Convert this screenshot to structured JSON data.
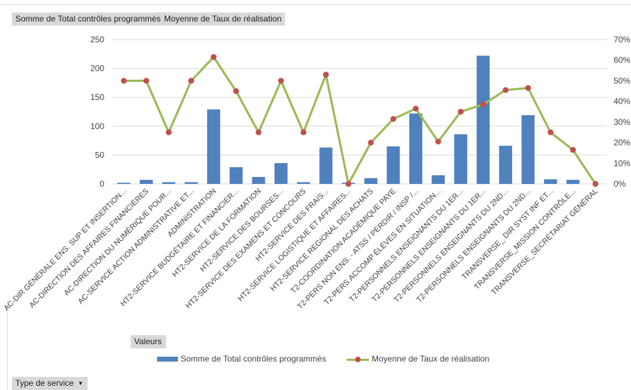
{
  "pivot_fields": {
    "values_sum": "Somme de Total contrôles programmés",
    "values_avg": "Moyenne de Taux de réalisation",
    "valeurs": "Valeurs",
    "row_field": "Type de service",
    "row_field_icon": "dropdown-arrow-icon"
  },
  "colors": {
    "bar": "#4f81bd",
    "line": "#9bbb59",
    "marker": "#c0504d",
    "grid": "#d9d9d9",
    "field_button": "#d9d9d9"
  },
  "chart_data": {
    "type": "bar",
    "combo": "bar+line",
    "title": "",
    "xlabel": "",
    "ylabel": "",
    "y2label": "",
    "grid": true,
    "legend_position": "bottom",
    "ylim": [
      0,
      250
    ],
    "y_ticks": [
      "0",
      "50",
      "100",
      "150",
      "200",
      "250"
    ],
    "y2lim": [
      0,
      0.7
    ],
    "y2_ticks": [
      "0%",
      "10%",
      "20%",
      "30%",
      "40%",
      "50%",
      "60%",
      "70%"
    ],
    "categories": [
      "AC-DIR GÉNÉRALE ENS. SUP ET INSERTION...",
      "AC-DIRECTION DES AFFAIRES FINANCIÈRES",
      "AC-DIRECTION DU NUMÉRIQUE POUR...",
      "AC-SERVICE ACTION ADMINISTRATIVE ET...",
      "ADMINISTRATION",
      "HT2-SERVICE BUDGÉTAIRE ET FINANCIER...",
      "HT2-SERVICE DE LA FORMATION",
      "HT2-SERVICE DES BOURSES...",
      "HT2-SERVICE DES EXAMENS ET CONCOURS",
      "HT2-SERVICE DES FRAIS...",
      "HT2-SERVICE LOGISTIQUE ET AFFAIRES...",
      "HT2-SERVICE REGIONAL DES ACHATS",
      "T2-COORDINATION ACADÉMIQUE PAYE",
      "T2-PERS NON ENS. - ATSS / PERDIR / INSP /...",
      "T2-PERS.ACCOMP ÉLÈVES EN SITUATION...",
      "T2-PERSONNELS ENSEIGNANTS DU 1ER...",
      "T2-PERSONNELS ENSEIGNANTS DU 1ER...",
      "T2-PERSONNELS ENSEIGNANTS DU 2ND...",
      "T2-PERSONNELS ENSEIGNANTS DU 2ND...",
      "TRANSVERSE_ DIR SYST INF ET...",
      "TRANSVERSE_MISSION CONTRÔLE...",
      "TRANSVERSE_SECRÉTARIAT GÉNÉRAL"
    ],
    "series": [
      {
        "name": "Somme de Total contrôles programmés",
        "type": "bar",
        "axis": "left",
        "values": [
          2,
          7,
          3,
          3,
          129,
          29,
          12,
          36,
          3,
          63,
          2,
          10,
          65,
          122,
          15,
          86,
          222,
          66,
          119,
          8,
          7,
          0
        ]
      },
      {
        "name": "Moyenne de Taux de réalisation",
        "type": "line",
        "axis": "right",
        "values": [
          0.5,
          0.5,
          0.25,
          0.5,
          0.615,
          0.45,
          0.25,
          0.5,
          0.25,
          0.53,
          0.0,
          0.2,
          0.315,
          0.365,
          0.205,
          0.35,
          0.385,
          0.455,
          0.465,
          0.25,
          0.165,
          0.0
        ]
      }
    ]
  }
}
